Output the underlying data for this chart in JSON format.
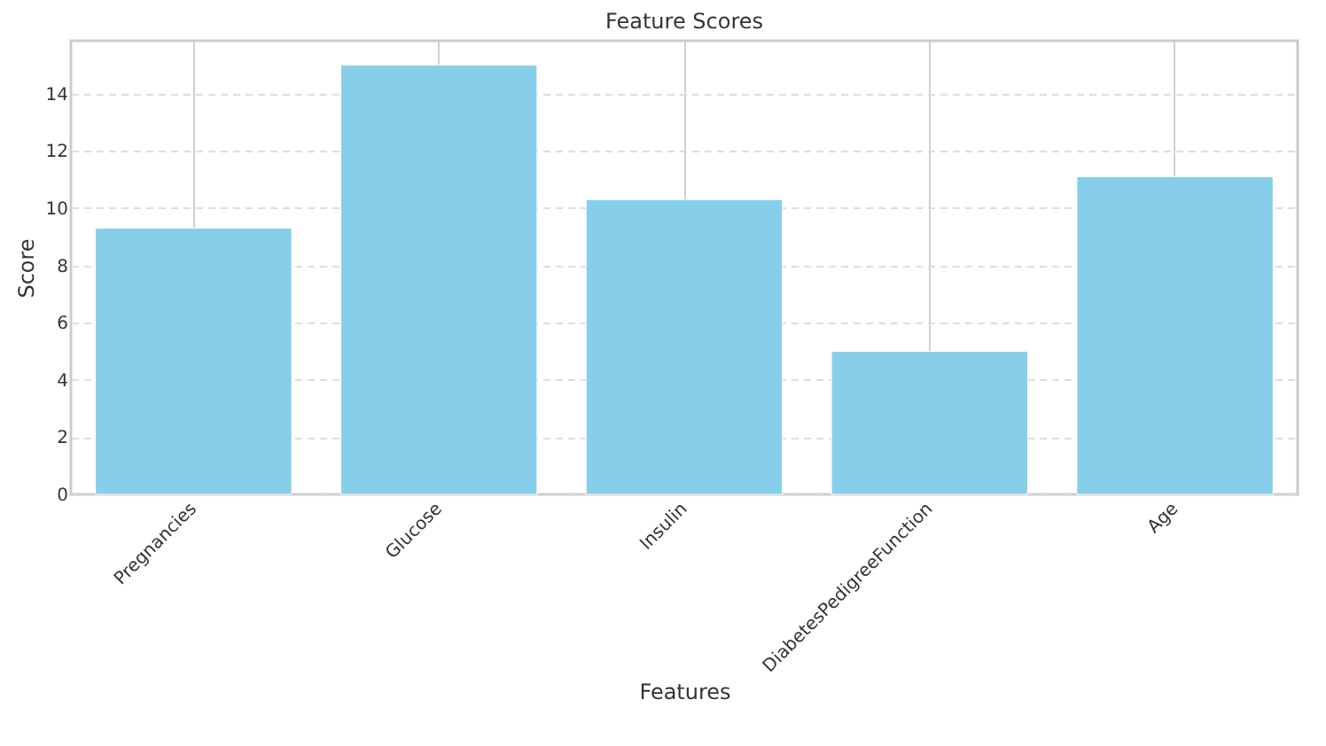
{
  "chart_data": {
    "type": "bar",
    "title": "Feature Scores",
    "xlabel": "Features",
    "ylabel": "Score",
    "categories": [
      "Pregnancies",
      "Glucose",
      "Insulin",
      "DiabetesPedigreeFunction",
      "Age"
    ],
    "values": [
      9.3,
      15.0,
      10.3,
      5.0,
      11.1
    ],
    "color": "#87ceeb",
    "ylim": [
      0,
      15.85
    ],
    "yticks": [
      0,
      2,
      4,
      6,
      8,
      10,
      12,
      14
    ],
    "grid": true
  }
}
